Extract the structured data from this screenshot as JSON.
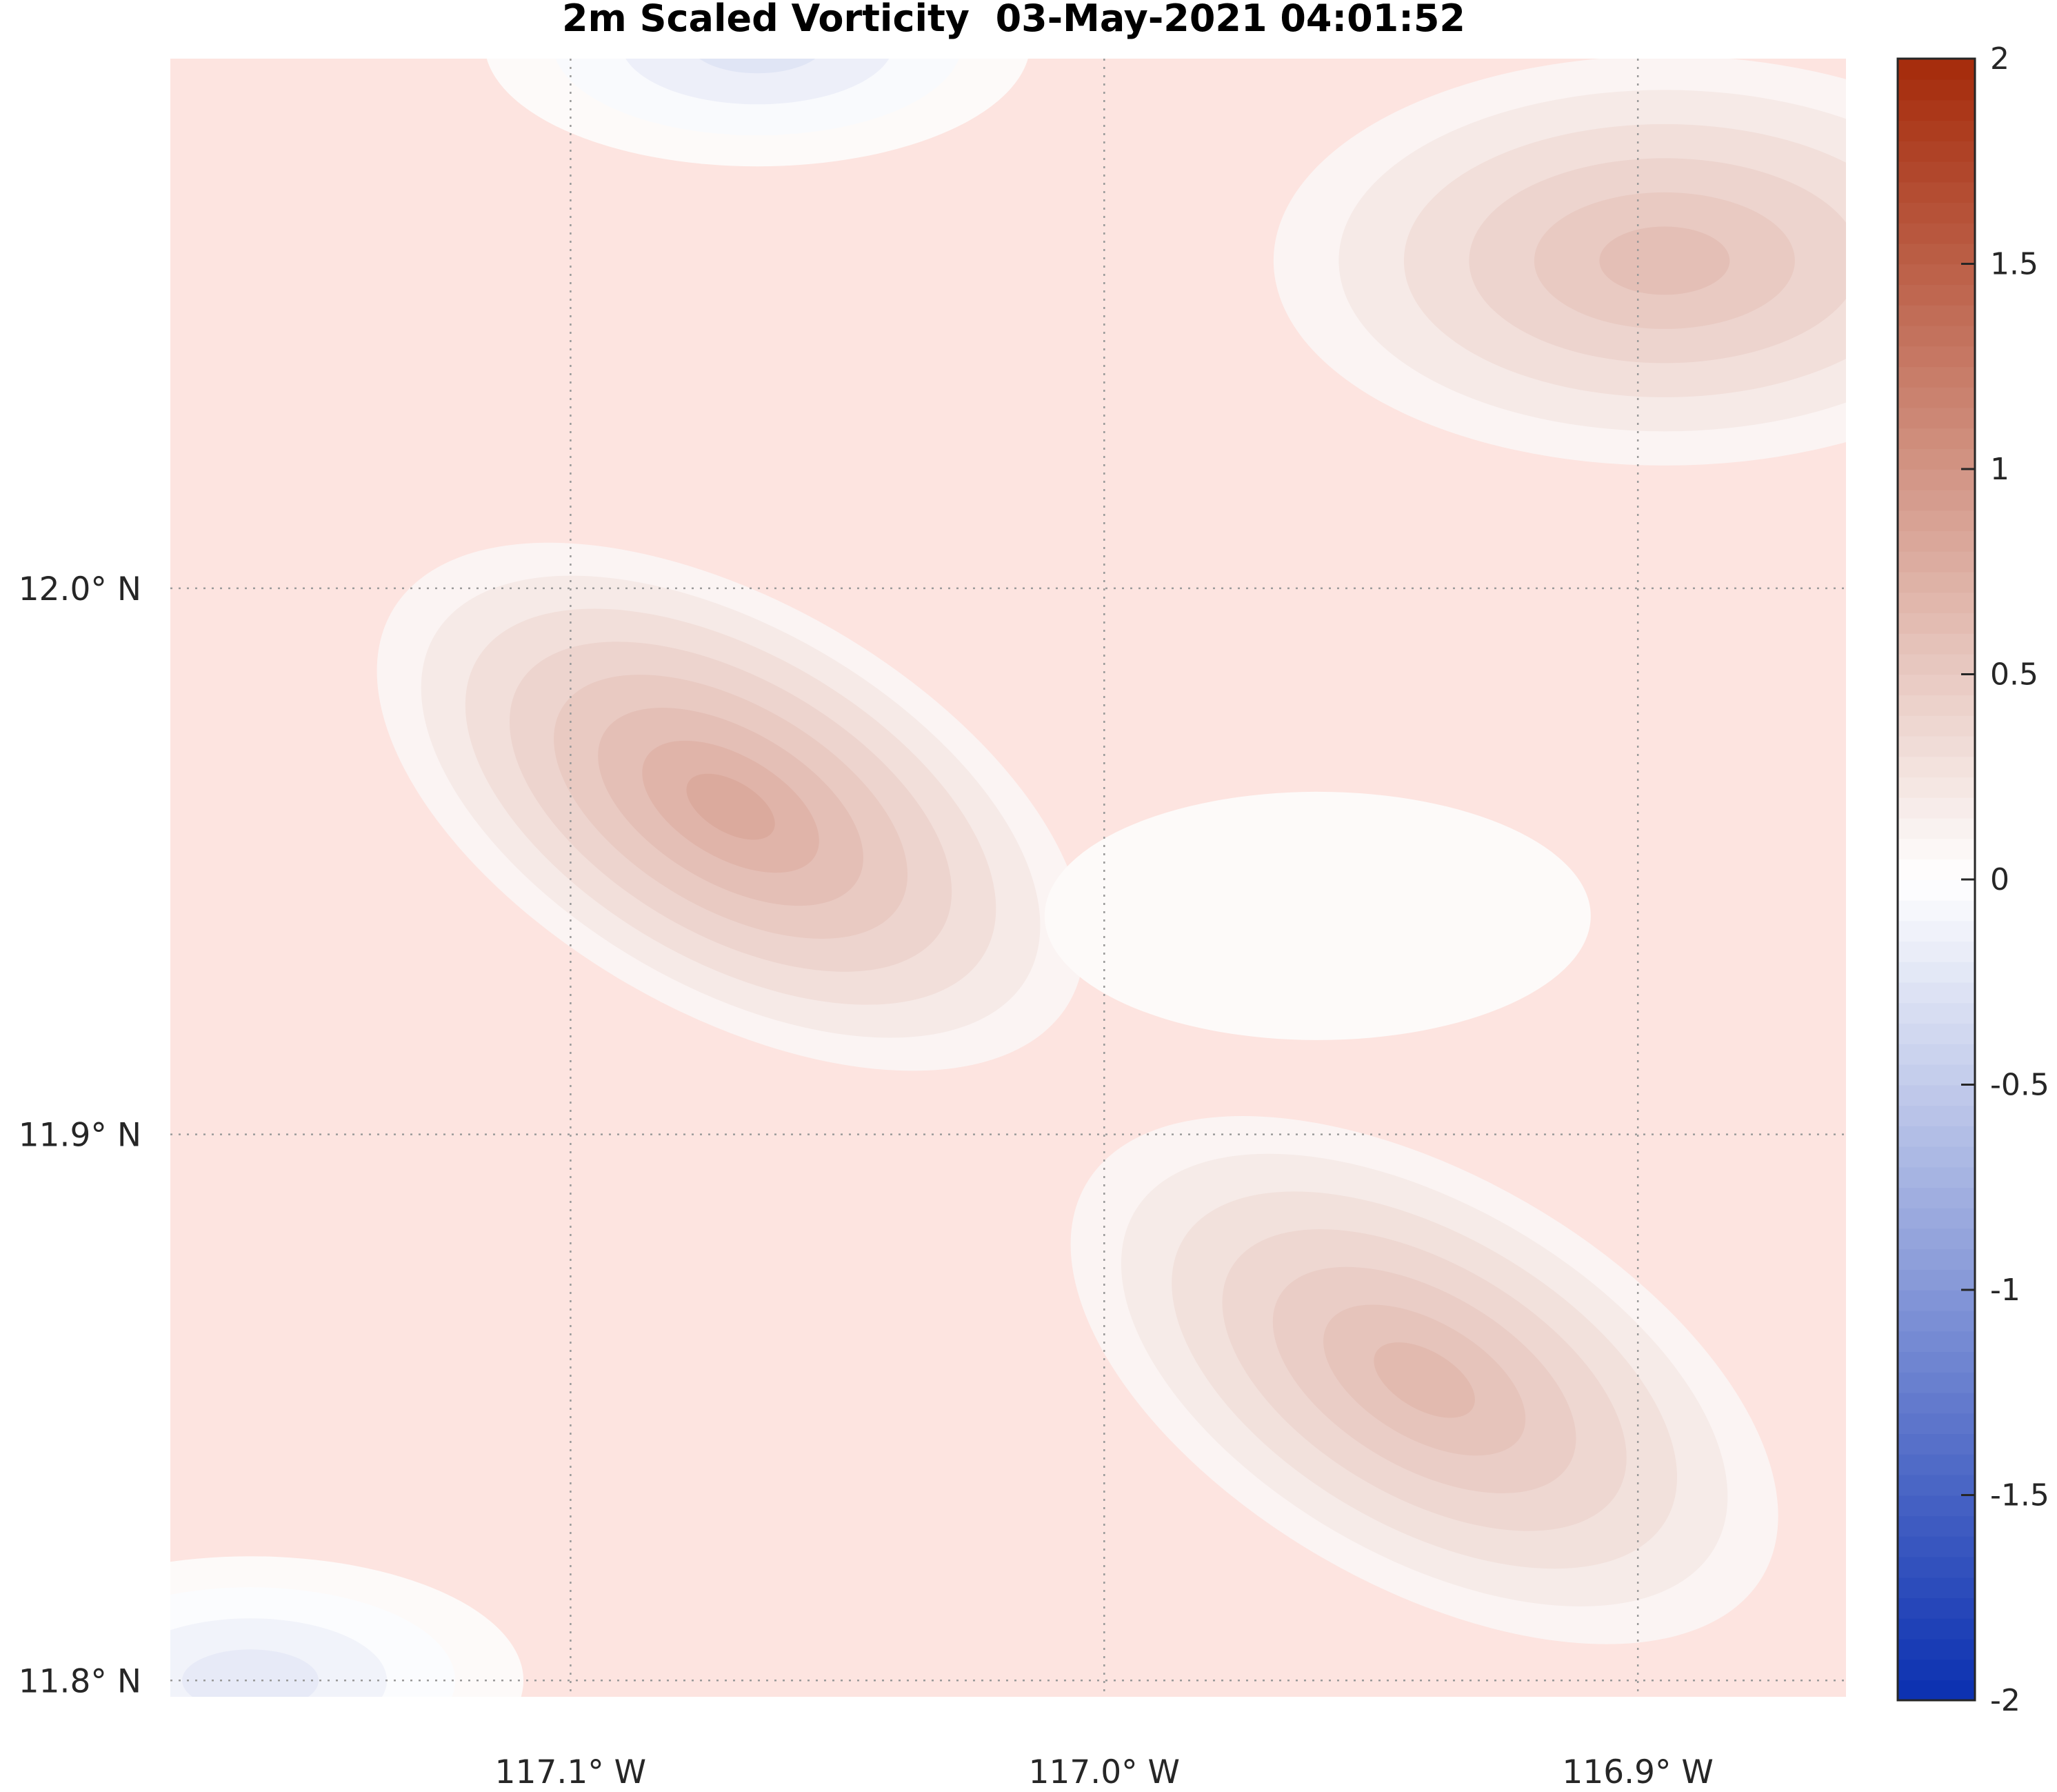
{
  "chart_data": {
    "type": "heatmap",
    "title": "2m Scaled Vorticity  03-May-2021 04:01:52",
    "xlabel": "",
    "ylabel": "",
    "x_ticks": [
      {
        "value": -117.1,
        "label": "117.1° W"
      },
      {
        "value": -117.0,
        "label": "117.0° W"
      },
      {
        "value": -116.9,
        "label": "116.9° W"
      }
    ],
    "y_ticks": [
      {
        "value": 12.0,
        "label": "12.0° N"
      },
      {
        "value": 11.9,
        "label": "11.9° N"
      },
      {
        "value": 11.8,
        "label": "11.8° N"
      }
    ],
    "xlim": [
      -117.175,
      -116.861
    ],
    "ylim": [
      11.797,
      12.097
    ],
    "grid": true,
    "colorbar": {
      "min": -2,
      "max": 2,
      "ticks": [
        2,
        1.5,
        1,
        0.5,
        0,
        -0.5,
        -1,
        -1.5,
        -2
      ],
      "tick_labels": [
        "2",
        "1.5",
        "1",
        "0.5",
        "0",
        "-0.5",
        "-1",
        "-1.5",
        "-2"
      ],
      "colormap": "blue-white-red (diverging)",
      "low_color": "#0a2fb0",
      "mid_color": "#ffffff",
      "high_color": "#a52a0a"
    },
    "features": [
      {
        "kind": "max",
        "lon": -117.07,
        "lat": 11.96,
        "value": 0.8
      },
      {
        "kind": "max",
        "lon": -116.94,
        "lat": 11.855,
        "value": 0.65
      },
      {
        "kind": "max",
        "lon": -116.895,
        "lat": 12.06,
        "value": 0.6
      },
      {
        "kind": "min",
        "lon": -117.065,
        "lat": 12.1,
        "value": -0.25
      },
      {
        "kind": "min",
        "lon": -117.16,
        "lat": 11.8,
        "value": -0.2
      },
      {
        "kind": "min",
        "lon": -116.96,
        "lat": 11.94,
        "value": 0.03
      }
    ]
  }
}
